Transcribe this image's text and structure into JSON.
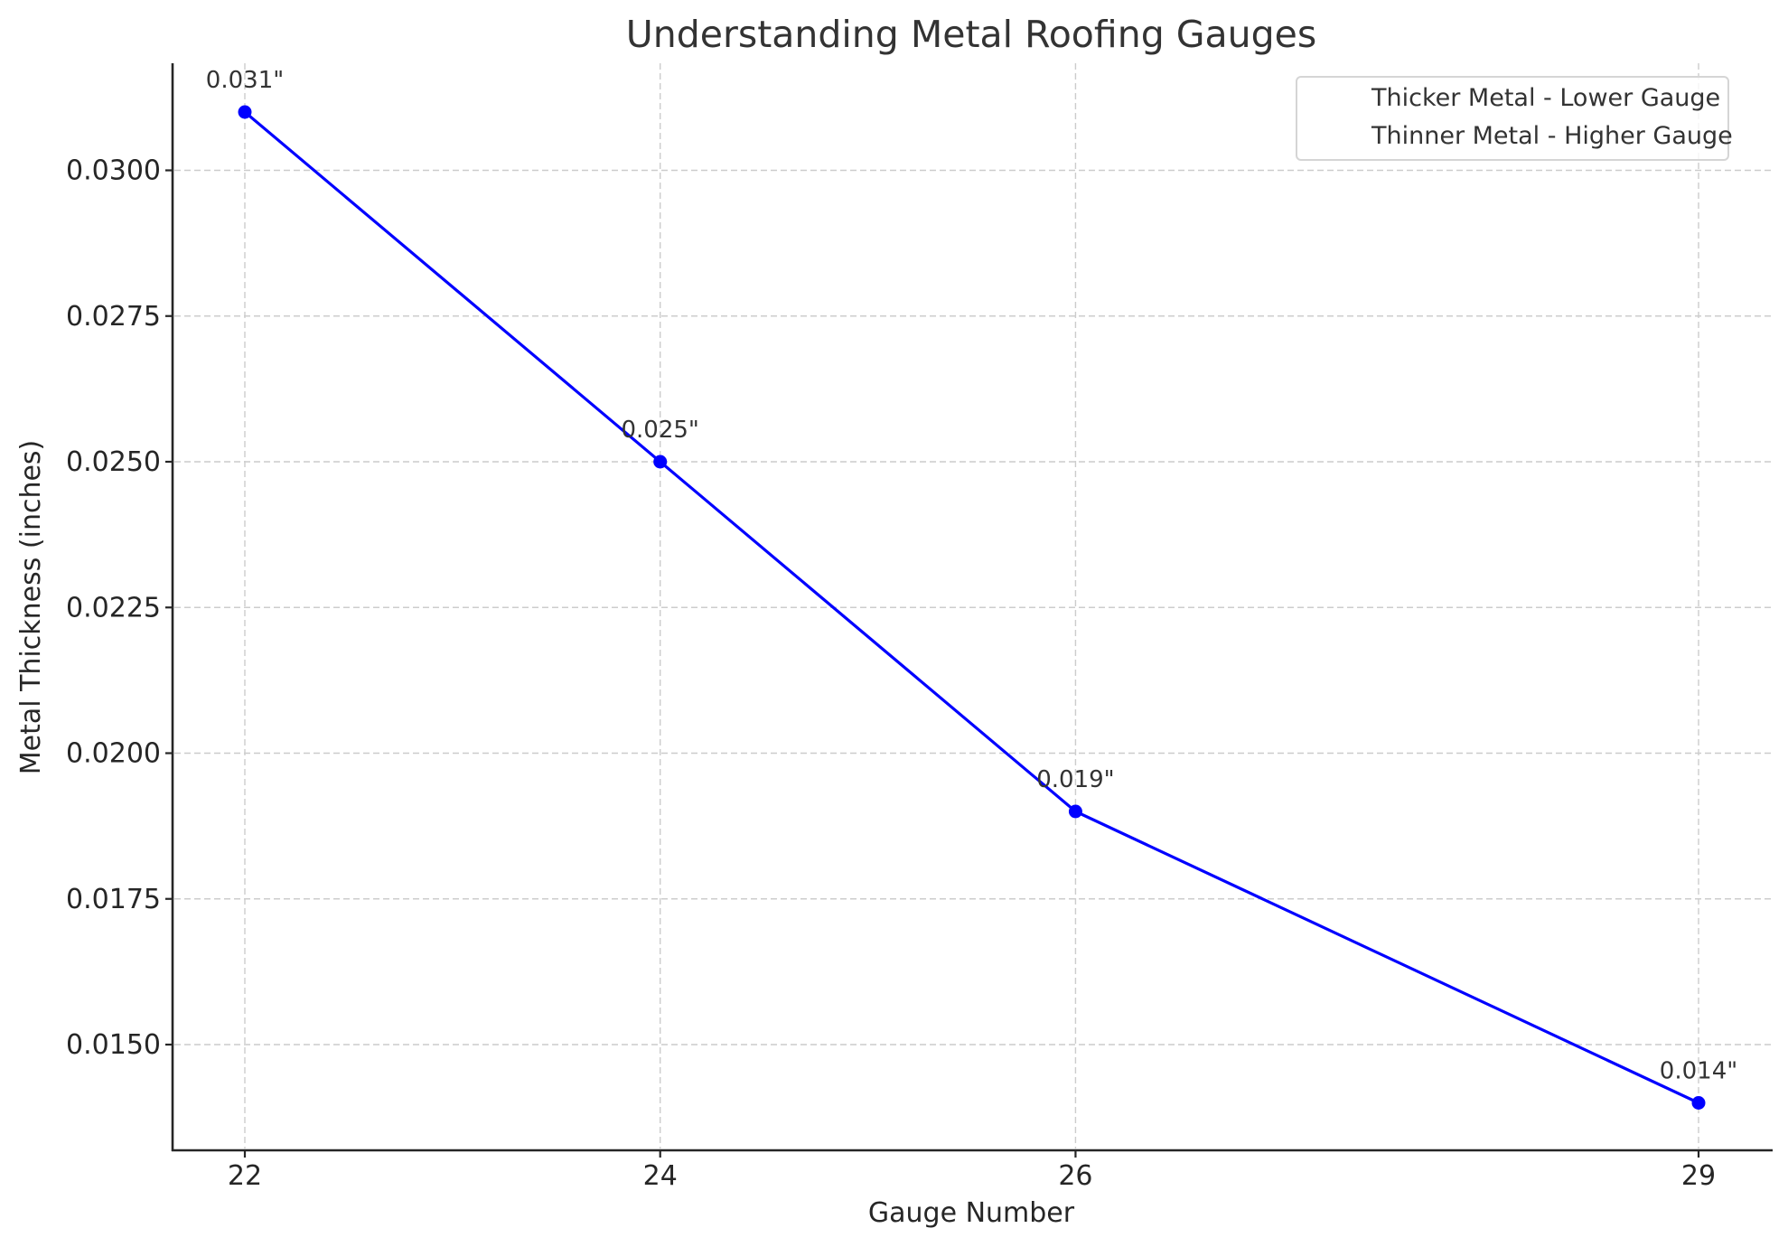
{
  "chart_data": {
    "type": "line",
    "title": "Understanding Metal Roofing Gauges",
    "xlabel": "Gauge Number",
    "ylabel": "Metal Thickness (inches)",
    "x": [
      22,
      24,
      26,
      29
    ],
    "series": [
      {
        "name": "Metal Thickness",
        "values": [
          0.031,
          0.025,
          0.019,
          0.014
        ],
        "color": "#0000ff",
        "marker": "circle",
        "data_labels": [
          "0.031\"",
          "0.025\"",
          "0.019\"",
          "0.014\""
        ]
      }
    ],
    "xticks": [
      "22",
      "24",
      "26",
      "29"
    ],
    "yticks": [
      "0.0150",
      "0.0175",
      "0.0200",
      "0.0225",
      "0.0250",
      "0.0275",
      "0.0300"
    ],
    "ylim": [
      0.01334,
      0.03184
    ],
    "xlim": [
      21.65,
      29.35
    ],
    "grid": true,
    "legend": {
      "position": "upper right",
      "entries": [
        "Thicker Metal - Lower Gauge",
        "Thinner Metal - Higher Gauge"
      ]
    }
  }
}
